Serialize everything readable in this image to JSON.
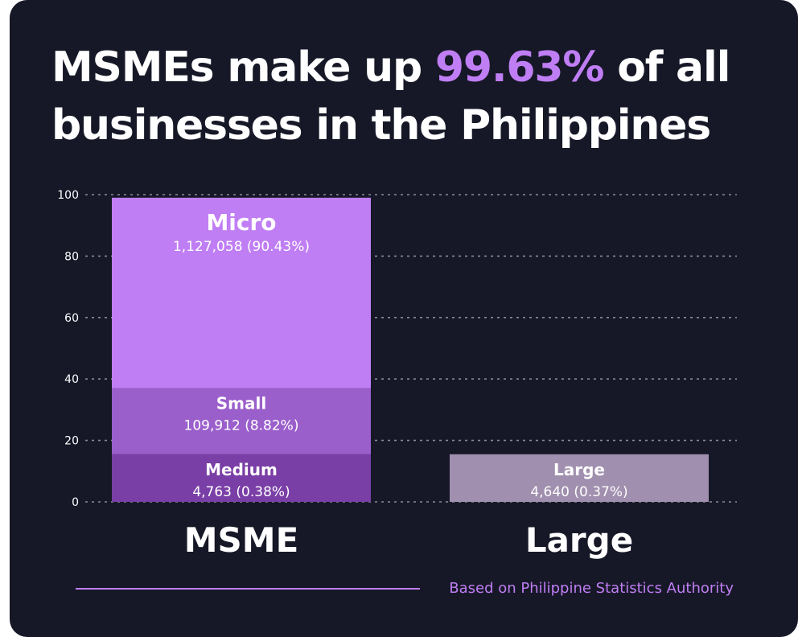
{
  "title": {
    "before": "MSMEs make up ",
    "highlight": "99.63%",
    "after": " of all businesses in the Philippines"
  },
  "colors": {
    "background": "#161827",
    "accent": "#c07ef4",
    "micro": "#c07ef4",
    "small": "#9b5fcc",
    "medium": "#7a3fa6",
    "large": "#a08fae",
    "grid": "#8a8b96"
  },
  "source": "Based on Philippine Statistics Authority",
  "chart_data": {
    "type": "bar",
    "stacked": true,
    "categories": [
      "MSME",
      "Large"
    ],
    "ylim": [
      0,
      100
    ],
    "yticks": [
      0,
      20,
      40,
      60,
      80,
      100
    ],
    "grid": true,
    "title": "",
    "xlabel": "",
    "ylabel": "",
    "segments": [
      {
        "category": "MSME",
        "name": "Medium",
        "value": 15.5,
        "label": "4,763 (0.38%)",
        "color_key": "medium"
      },
      {
        "category": "MSME",
        "name": "Small",
        "value": 21.5,
        "label": "109,912 (8.82%)",
        "color_key": "small"
      },
      {
        "category": "MSME",
        "name": "Micro",
        "value": 62,
        "label": "1,127,058 (90.43%)",
        "color_key": "micro"
      },
      {
        "category": "Large",
        "name": "Large",
        "value": 15.5,
        "label": "4,640 (0.37%)",
        "color_key": "large"
      }
    ]
  }
}
